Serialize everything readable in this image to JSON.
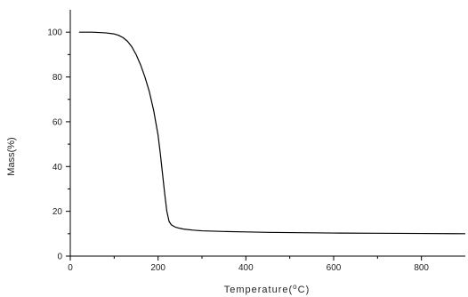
{
  "chart_data": {
    "type": "line",
    "xlabel": "Temperature",
    "xlabel_unit_sup": "o",
    "xlabel_unit": "C",
    "ylabel": "Mass(%)",
    "xlim": [
      0,
      900
    ],
    "ylim": [
      0,
      110
    ],
    "x_ticks": [
      0,
      200,
      400,
      600,
      800
    ],
    "y_ticks": [
      0,
      20,
      40,
      60,
      80,
      100
    ],
    "grid": false,
    "series": [
      {
        "x": [
          20,
          50,
          80,
          100,
          110,
          120,
          130,
          140,
          150,
          160,
          170,
          180,
          190,
          200,
          205,
          210,
          215,
          220,
          225,
          230,
          235,
          240,
          250,
          260,
          280,
          300,
          350,
          400,
          450,
          500,
          550,
          600,
          700,
          800,
          900
        ],
        "y": [
          100,
          100,
          99.7,
          99.2,
          98.6,
          97.6,
          96,
          93.5,
          90,
          85.5,
          80,
          73.5,
          65,
          54,
          46,
          37,
          28,
          20,
          15.5,
          14,
          13.4,
          12.9,
          12.4,
          12,
          11.6,
          11.3,
          11,
          10.8,
          10.6,
          10.5,
          10.4,
          10.3,
          10.2,
          10.1,
          10
        ]
      }
    ],
    "colors": {
      "line": "#000000",
      "axis": "#000000"
    }
  }
}
